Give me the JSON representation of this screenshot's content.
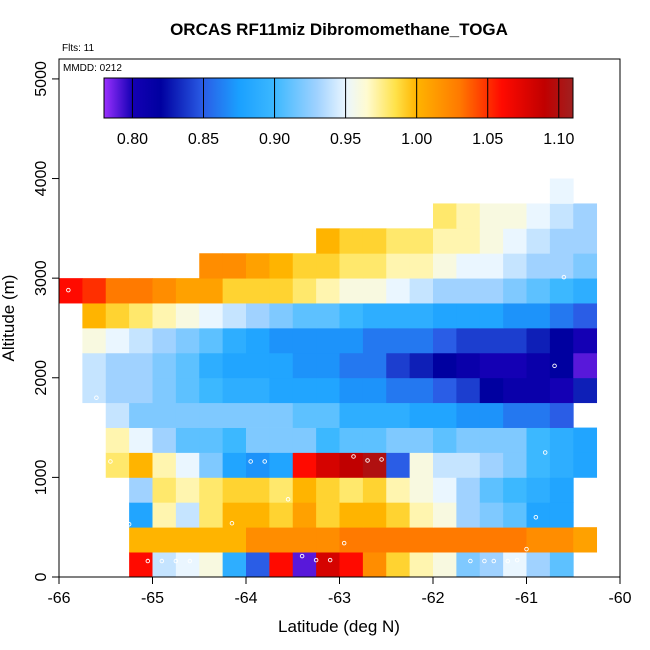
{
  "chart_data": {
    "type": "heatmap",
    "title": "ORCAS RF11miz Dibromomethane_TOGA",
    "annotations": {
      "flights": "Flts: 11",
      "date": "MMDD: 0212"
    },
    "xlabel": "Latitude (deg N)",
    "ylabel": "Altitude (m)",
    "xlim": [
      -66,
      -60
    ],
    "ylim": [
      0,
      5200
    ],
    "x_ticks": [
      -66,
      -65,
      -64,
      -63,
      -62,
      -61,
      -60
    ],
    "x_tick_labels": [
      "-66",
      "-65",
      "-64",
      "-63",
      "-62",
      "-61",
      "-60"
    ],
    "y_ticks": [
      0,
      1000,
      2000,
      3000,
      4000,
      5000
    ],
    "y_tick_labels": [
      "0",
      "1000",
      "2000",
      "3000",
      "4000",
      "5000"
    ],
    "colorbar": {
      "range": [
        0.78,
        1.11
      ],
      "ticks": [
        0.8,
        0.85,
        0.9,
        0.95,
        1.0,
        1.05,
        1.1
      ],
      "tick_labels": [
        "0.80",
        "0.85",
        "0.90",
        "0.95",
        "1.00",
        "1.05",
        "1.10"
      ],
      "stops": [
        {
          "v": 0.78,
          "c": "#9b30ff"
        },
        {
          "v": 0.8,
          "c": "#1400b4"
        },
        {
          "v": 0.82,
          "c": "#0000a0"
        },
        {
          "v": 0.85,
          "c": "#2a5de6"
        },
        {
          "v": 0.875,
          "c": "#1aa0ff"
        },
        {
          "v": 0.9,
          "c": "#3cb8ff"
        },
        {
          "v": 0.93,
          "c": "#a0d2ff"
        },
        {
          "v": 0.95,
          "c": "#eaf6ff"
        },
        {
          "v": 0.965,
          "c": "#fffbd0"
        },
        {
          "v": 0.985,
          "c": "#ffe24a"
        },
        {
          "v": 1.0,
          "c": "#ffb400"
        },
        {
          "v": 1.03,
          "c": "#ff7a00"
        },
        {
          "v": 1.06,
          "c": "#ff0a00"
        },
        {
          "v": 1.09,
          "c": "#c00000"
        },
        {
          "v": 1.11,
          "c": "#a02020"
        }
      ]
    },
    "cell_size": {
      "lat": 0.25,
      "alt": 250
    },
    "grid_rows": [
      {
        "alt": 125,
        "lat_start": -65.25,
        "values": [
          1.06,
          0.94,
          0.95,
          0.96,
          0.89,
          0.85,
          1.06,
          0.79,
          1.08,
          1.06,
          1.02,
          0.99,
          0.97,
          0.96,
          0.92,
          0.93,
          0.95,
          0.93,
          0.91
        ]
      },
      {
        "alt": 375,
        "lat_start": -65.25,
        "values": [
          1.0,
          1.0,
          1.0,
          1.0,
          1.0,
          1.02,
          1.02,
          1.02,
          1.02,
          1.03,
          1.03,
          1.03,
          1.03,
          1.03,
          1.03,
          1.03,
          1.03,
          1.02,
          1.02,
          1.01
        ]
      },
      {
        "alt": 625,
        "lat_start": -65.25,
        "values": [
          0.88,
          0.97,
          0.94,
          0.98,
          1.0,
          1.0,
          0.99,
          1.01,
          0.99,
          1.0,
          1.0,
          0.99,
          0.97,
          0.96,
          0.93,
          0.92,
          0.91,
          0.88,
          0.88
        ]
      },
      {
        "alt": 875,
        "lat_start": -65.25,
        "values": [
          0.93,
          0.98,
          0.97,
          0.98,
          0.99,
          0.99,
          0.98,
          1.0,
          0.99,
          0.98,
          0.99,
          0.97,
          0.96,
          0.95,
          0.93,
          0.91,
          0.9,
          0.89,
          0.88
        ]
      },
      {
        "alt": 1125,
        "lat_start": -65.5,
        "values": [
          0.98,
          1.0,
          0.97,
          0.95,
          0.92,
          0.88,
          0.87,
          0.88,
          1.06,
          1.08,
          1.09,
          1.1,
          0.85,
          0.96,
          0.94,
          0.94,
          0.93,
          0.92,
          0.9,
          0.89,
          0.88
        ]
      },
      {
        "alt": 1375,
        "lat_start": -65.5,
        "values": [
          0.97,
          0.95,
          0.93,
          0.91,
          0.91,
          0.9,
          0.92,
          0.92,
          0.92,
          0.9,
          0.91,
          0.91,
          0.92,
          0.92,
          0.91,
          0.92,
          0.92,
          0.92,
          0.9,
          0.89,
          0.88
        ]
      },
      {
        "alt": 1625,
        "lat_start": -65.5,
        "values": [
          0.94,
          0.92,
          0.92,
          0.92,
          0.92,
          0.92,
          0.92,
          0.92,
          0.91,
          0.91,
          0.89,
          0.89,
          0.89,
          0.88,
          0.88,
          0.87,
          0.87,
          0.86,
          0.86,
          0.85
        ]
      },
      {
        "alt": 1875,
        "lat_start": -65.75,
        "values": [
          0.94,
          0.93,
          0.93,
          0.92,
          0.91,
          0.9,
          0.89,
          0.89,
          0.88,
          0.88,
          0.88,
          0.87,
          0.87,
          0.86,
          0.86,
          0.85,
          0.84,
          0.82,
          0.81,
          0.81,
          0.8,
          0.83
        ]
      },
      {
        "alt": 2125,
        "lat_start": -65.75,
        "values": [
          0.94,
          0.93,
          0.93,
          0.92,
          0.91,
          0.89,
          0.88,
          0.88,
          0.88,
          0.87,
          0.87,
          0.86,
          0.86,
          0.84,
          0.83,
          0.82,
          0.81,
          0.8,
          0.8,
          0.81,
          0.82,
          0.79
        ]
      },
      {
        "alt": 2375,
        "lat_start": -65.75,
        "values": [
          0.96,
          0.95,
          0.94,
          0.93,
          0.92,
          0.91,
          0.89,
          0.88,
          0.87,
          0.87,
          0.87,
          0.87,
          0.86,
          0.86,
          0.86,
          0.85,
          0.84,
          0.84,
          0.84,
          0.83,
          0.82,
          0.8
        ]
      },
      {
        "alt": 2625,
        "lat_start": -65.75,
        "values": [
          1.0,
          0.99,
          0.98,
          0.97,
          0.96,
          0.95,
          0.94,
          0.93,
          0.92,
          0.91,
          0.91,
          0.9,
          0.89,
          0.89,
          0.89,
          0.88,
          0.88,
          0.88,
          0.87,
          0.87,
          0.86,
          0.85
        ]
      },
      {
        "alt": 2875,
        "lat_start": -66.0,
        "values": [
          1.06,
          1.05,
          1.03,
          1.03,
          1.02,
          1.01,
          1.01,
          0.99,
          0.99,
          0.99,
          0.98,
          0.97,
          0.96,
          0.96,
          0.95,
          0.94,
          0.93,
          0.93,
          0.93,
          0.92,
          0.91,
          0.9,
          0.89
        ]
      },
      {
        "alt": 3125,
        "lat_start": -64.5,
        "values": [
          1.02,
          1.02,
          1.01,
          1.0,
          0.99,
          0.99,
          0.98,
          0.98,
          0.97,
          0.97,
          0.96,
          0.95,
          0.95,
          0.94,
          0.93,
          0.93,
          0.92
        ]
      },
      {
        "alt": 3375,
        "lat_start": -63.25,
        "values": [
          1.0,
          0.99,
          0.99,
          0.98,
          0.98,
          0.97,
          0.97,
          0.96,
          0.95,
          0.94,
          0.93,
          0.93
        ]
      },
      {
        "alt": 3625,
        "lat_start": -62.0,
        "values": [
          0.98,
          0.97,
          0.96,
          0.96,
          0.95,
          0.94,
          0.93
        ]
      },
      {
        "alt": 3875,
        "lat_start": -60.75,
        "values": [
          0.95
        ]
      }
    ],
    "sample_points": [
      {
        "lat": -65.05,
        "alt": 160
      },
      {
        "lat": -64.9,
        "alt": 160
      },
      {
        "lat": -64.75,
        "alt": 160
      },
      {
        "lat": -64.6,
        "alt": 160
      },
      {
        "lat": -63.4,
        "alt": 210
      },
      {
        "lat": -63.25,
        "alt": 170
      },
      {
        "lat": -63.1,
        "alt": 170
      },
      {
        "lat": -61.6,
        "alt": 160
      },
      {
        "lat": -61.45,
        "alt": 160
      },
      {
        "lat": -61.35,
        "alt": 160
      },
      {
        "lat": -61.2,
        "alt": 160
      },
      {
        "lat": -61.1,
        "alt": 170
      },
      {
        "lat": -61.0,
        "alt": 280
      },
      {
        "lat": -62.95,
        "alt": 340
      },
      {
        "lat": -65.25,
        "alt": 530
      },
      {
        "lat": -64.15,
        "alt": 540
      },
      {
        "lat": -63.55,
        "alt": 780
      },
      {
        "lat": -60.9,
        "alt": 600
      },
      {
        "lat": -65.45,
        "alt": 1160
      },
      {
        "lat": -63.95,
        "alt": 1160
      },
      {
        "lat": -63.8,
        "alt": 1160
      },
      {
        "lat": -62.85,
        "alt": 1210
      },
      {
        "lat": -62.7,
        "alt": 1170
      },
      {
        "lat": -62.55,
        "alt": 1180
      },
      {
        "lat": -60.8,
        "alt": 1250
      },
      {
        "lat": -65.6,
        "alt": 1800
      },
      {
        "lat": -60.7,
        "alt": 2120
      },
      {
        "lat": -65.9,
        "alt": 2880
      },
      {
        "lat": -60.6,
        "alt": 3010
      }
    ]
  }
}
